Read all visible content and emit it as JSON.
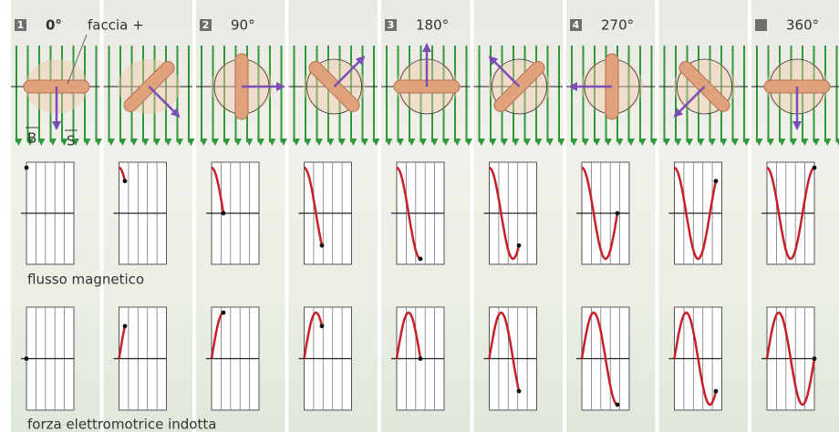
{
  "steps": [
    {
      "number": "1",
      "angle": "0°"
    },
    {
      "number": "2",
      "angle": "90°"
    },
    {
      "number": "3",
      "angle": "180°"
    },
    {
      "number": "4",
      "angle": "270°"
    },
    {
      "angle": "360°"
    }
  ],
  "labels": {
    "face": "faccia +",
    "b": "B",
    "s": "S"
  },
  "graph_labels": {
    "flux": "flusso magnetico",
    "emf": "forza elettromotrice indotta"
  }
}
